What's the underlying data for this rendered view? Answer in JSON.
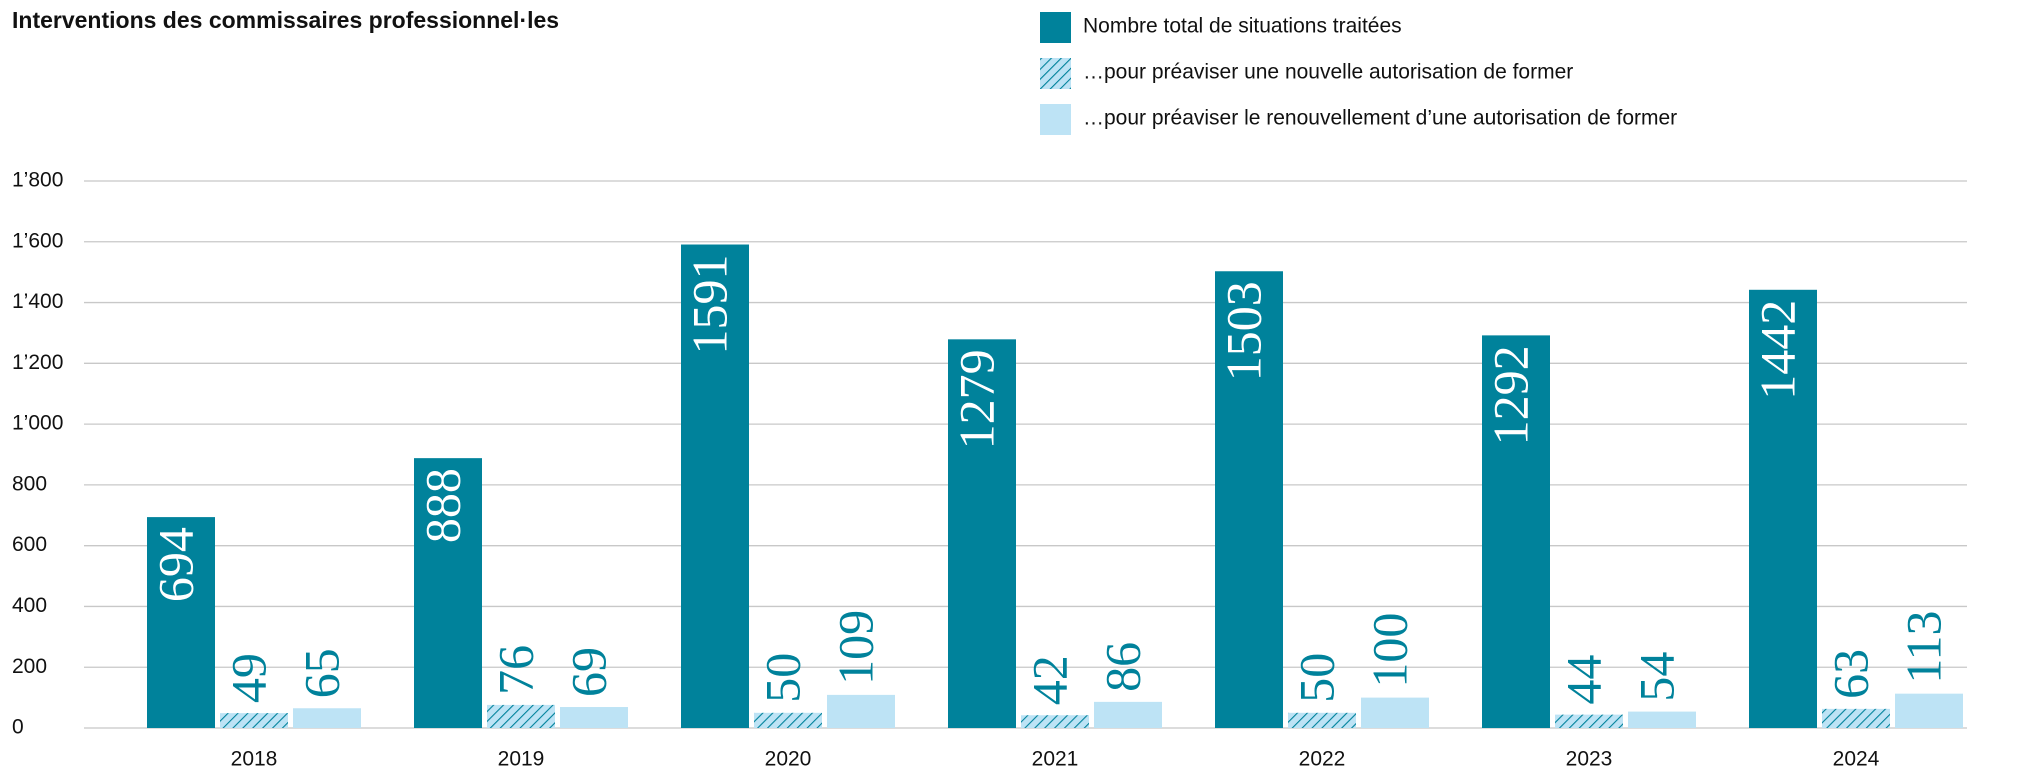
{
  "chart_data": {
    "type": "bar",
    "title": "Interventions des commissaires professionnel·les",
    "categories": [
      "2018",
      "2019",
      "2020",
      "2021",
      "2022",
      "2023",
      "2024"
    ],
    "series": [
      {
        "name": "Nombre total de situations traitées",
        "color": "#00829b",
        "values": [
          694,
          888,
          1591,
          1279,
          1503,
          1292,
          1442
        ]
      },
      {
        "name": "…pour préaviser une nouvelle autorisation de former",
        "color": "#bde3f5",
        "hatch": true,
        "values": [
          49,
          76,
          50,
          42,
          50,
          44,
          63
        ]
      },
      {
        "name": "…pour préaviser le renouvellement d’une autorisation de former",
        "color": "#bde3f5",
        "values": [
          65,
          69,
          109,
          86,
          100,
          54,
          113
        ]
      }
    ],
    "ylim": [
      0,
      1800
    ],
    "yticks": [
      0,
      200,
      400,
      600,
      800,
      {
        "value": 1000,
        "label": "1’000"
      },
      {
        "value": 1200,
        "label": "1’200"
      },
      {
        "value": 1400,
        "label": "1’400"
      },
      {
        "value": 1600,
        "label": "1’600"
      },
      {
        "value": 1800,
        "label": "1’800"
      }
    ],
    "grid": true
  }
}
